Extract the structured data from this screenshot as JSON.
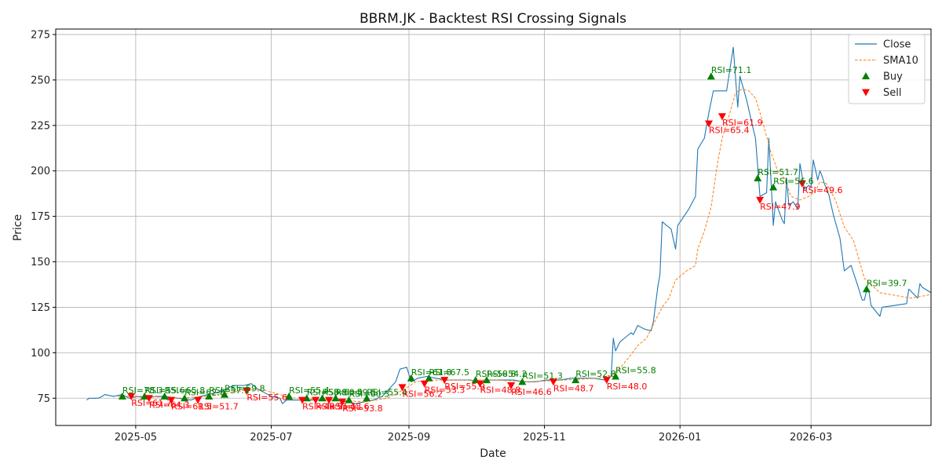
{
  "chart_data": {
    "type": "line",
    "title": "BBRM.JK - Backtest RSI Crossing Signals",
    "xlabel": "Date",
    "ylabel": "Price",
    "grid": true,
    "legend_position": "top-right",
    "x_range": [
      "2025-03-26",
      "2026-04-24"
    ],
    "ylim": [
      60,
      278
    ],
    "y_ticks": [
      75,
      100,
      125,
      150,
      175,
      200,
      225,
      250,
      275
    ],
    "x_ticks": [
      {
        "date": "2025-05-01",
        "label": "2025-05"
      },
      {
        "date": "2025-07-01",
        "label": "2025-07"
      },
      {
        "date": "2025-09-01",
        "label": "2025-09"
      },
      {
        "date": "2025-11-01",
        "label": "2025-11"
      },
      {
        "date": "2026-01-01",
        "label": "2026-01"
      },
      {
        "date": "2026-03-01",
        "label": "2026-03"
      }
    ],
    "colors": {
      "close": "#1f77b4",
      "sma": "#ff7f0e",
      "buy": "#008000",
      "sell": "#ff0000",
      "grid": "#b0b0b0"
    },
    "series": [
      {
        "key": "close",
        "name": "Close",
        "style": "solid",
        "points": [
          [
            "2025-04-09",
            74
          ],
          [
            "2025-04-10",
            75
          ],
          [
            "2025-04-14",
            75
          ],
          [
            "2025-04-16",
            76
          ],
          [
            "2025-04-17",
            77
          ],
          [
            "2025-04-21",
            76
          ],
          [
            "2025-04-25",
            77
          ],
          [
            "2025-04-28",
            75
          ],
          [
            "2025-05-02",
            76
          ],
          [
            "2025-05-06",
            75
          ],
          [
            "2025-05-10",
            76
          ],
          [
            "2025-05-14",
            76
          ],
          [
            "2025-05-20",
            75
          ],
          [
            "2025-05-26",
            74
          ],
          [
            "2025-05-30",
            76
          ],
          [
            "2025-06-03",
            77
          ],
          [
            "2025-06-09",
            79
          ],
          [
            "2025-06-12",
            81
          ],
          [
            "2025-06-15",
            82
          ],
          [
            "2025-06-19",
            82
          ],
          [
            "2025-06-22",
            83
          ],
          [
            "2025-06-25",
            80
          ],
          [
            "2025-06-28",
            78
          ],
          [
            "2025-07-01",
            76
          ],
          [
            "2025-07-05",
            75
          ],
          [
            "2025-07-06",
            72
          ],
          [
            "2025-07-08",
            74
          ],
          [
            "2025-07-13",
            74
          ],
          [
            "2025-07-20",
            74
          ],
          [
            "2025-07-25",
            74
          ],
          [
            "2025-07-30",
            74
          ],
          [
            "2025-08-04",
            73
          ],
          [
            "2025-08-08",
            72
          ],
          [
            "2025-08-12",
            73
          ],
          [
            "2025-08-16",
            74
          ],
          [
            "2025-08-20",
            76
          ],
          [
            "2025-08-23",
            80
          ],
          [
            "2025-08-26",
            84
          ],
          [
            "2025-08-28",
            91
          ],
          [
            "2025-08-31",
            92
          ],
          [
            "2025-09-02",
            84
          ],
          [
            "2025-09-05",
            86
          ],
          [
            "2025-09-09",
            87
          ],
          [
            "2025-09-13",
            86
          ],
          [
            "2025-09-18",
            85
          ],
          [
            "2025-09-23",
            85
          ],
          [
            "2025-09-28",
            85
          ],
          [
            "2025-10-03",
            84
          ],
          [
            "2025-10-08",
            85
          ],
          [
            "2025-10-13",
            85
          ],
          [
            "2025-10-18",
            85
          ],
          [
            "2025-10-23",
            84
          ],
          [
            "2025-10-28",
            84
          ],
          [
            "2025-11-02",
            85
          ],
          [
            "2025-11-08",
            85
          ],
          [
            "2025-11-13",
            86
          ],
          [
            "2025-11-18",
            86
          ],
          [
            "2025-11-23",
            86
          ],
          [
            "2025-11-28",
            85
          ],
          [
            "2025-12-01",
            87
          ],
          [
            "2025-12-02",
            108
          ],
          [
            "2025-12-03",
            101
          ],
          [
            "2025-12-05",
            106
          ],
          [
            "2025-12-08",
            109
          ],
          [
            "2025-12-10",
            111
          ],
          [
            "2025-12-11",
            110
          ],
          [
            "2025-12-13",
            115
          ],
          [
            "2025-12-16",
            113
          ],
          [
            "2025-12-19",
            112
          ],
          [
            "2025-12-20",
            117
          ],
          [
            "2025-12-22",
            136
          ],
          [
            "2025-12-23",
            143
          ],
          [
            "2025-12-24",
            172
          ],
          [
            "2025-12-28",
            168
          ],
          [
            "2025-12-30",
            157
          ],
          [
            "2025-12-31",
            170
          ],
          [
            "2026-01-05",
            179
          ],
          [
            "2026-01-08",
            186
          ],
          [
            "2026-01-09",
            212
          ],
          [
            "2026-01-12",
            218
          ],
          [
            "2026-01-14",
            232
          ],
          [
            "2026-01-16",
            244
          ],
          [
            "2026-01-20",
            244
          ],
          [
            "2026-01-22",
            244
          ],
          [
            "2026-01-25",
            268
          ],
          [
            "2026-01-27",
            235
          ],
          [
            "2026-01-28",
            252
          ],
          [
            "2026-01-31",
            239
          ],
          [
            "2026-02-02",
            228
          ],
          [
            "2026-02-04",
            218
          ],
          [
            "2026-02-06",
            186
          ],
          [
            "2026-02-09",
            188
          ],
          [
            "2026-02-10",
            218
          ],
          [
            "2026-02-12",
            170
          ],
          [
            "2026-02-13",
            183
          ],
          [
            "2026-02-16",
            173
          ],
          [
            "2026-02-17",
            171
          ],
          [
            "2026-02-18",
            196
          ],
          [
            "2026-02-19",
            181
          ],
          [
            "2026-02-21",
            183
          ],
          [
            "2026-02-23",
            179
          ],
          [
            "2026-02-24",
            204
          ],
          [
            "2026-02-26",
            190
          ],
          [
            "2026-02-28",
            192
          ],
          [
            "2026-03-01",
            191
          ],
          [
            "2026-03-02",
            206
          ],
          [
            "2026-03-04",
            195
          ],
          [
            "2026-03-05",
            200
          ],
          [
            "2026-03-06",
            197
          ],
          [
            "2026-03-07",
            193
          ],
          [
            "2026-03-09",
            187
          ],
          [
            "2026-03-11",
            176
          ],
          [
            "2026-03-14",
            163
          ],
          [
            "2026-03-16",
            145
          ],
          [
            "2026-03-19",
            148
          ],
          [
            "2026-03-22",
            137
          ],
          [
            "2026-03-24",
            129
          ],
          [
            "2026-03-25",
            129
          ],
          [
            "2026-03-26",
            134
          ],
          [
            "2026-03-27",
            134
          ],
          [
            "2026-03-28",
            126
          ],
          [
            "2026-04-01",
            120
          ],
          [
            "2026-04-02",
            125
          ],
          [
            "2026-04-13",
            127
          ],
          [
            "2026-04-14",
            135
          ],
          [
            "2026-04-18",
            130
          ],
          [
            "2026-04-19",
            138
          ],
          [
            "2026-04-20",
            136
          ],
          [
            "2026-04-24",
            133
          ]
        ]
      },
      {
        "key": "sma",
        "name": "SMA10",
        "style": "dashed",
        "points": [
          [
            "2025-04-23",
            76
          ],
          [
            "2025-05-07",
            76
          ],
          [
            "2025-05-20",
            75
          ],
          [
            "2025-06-03",
            76
          ],
          [
            "2025-06-17",
            79
          ],
          [
            "2025-06-26",
            80
          ],
          [
            "2025-07-05",
            77
          ],
          [
            "2025-07-12",
            75
          ],
          [
            "2025-07-30",
            74
          ],
          [
            "2025-08-12",
            73
          ],
          [
            "2025-08-22",
            75
          ],
          [
            "2025-08-30",
            80
          ],
          [
            "2025-09-04",
            84
          ],
          [
            "2025-09-12",
            85
          ],
          [
            "2025-09-25",
            85
          ],
          [
            "2025-10-10",
            85
          ],
          [
            "2025-10-25",
            84
          ],
          [
            "2025-11-10",
            85
          ],
          [
            "2025-11-25",
            86
          ],
          [
            "2025-12-02",
            88
          ],
          [
            "2025-12-06",
            93
          ],
          [
            "2025-12-10",
            99
          ],
          [
            "2025-12-13",
            104
          ],
          [
            "2025-12-17",
            108
          ],
          [
            "2025-12-21",
            118
          ],
          [
            "2025-12-24",
            125
          ],
          [
            "2025-12-27",
            130
          ],
          [
            "2025-12-30",
            140
          ],
          [
            "2026-01-04",
            145
          ],
          [
            "2026-01-08",
            148
          ],
          [
            "2026-01-09",
            157
          ],
          [
            "2026-01-12",
            167
          ],
          [
            "2026-01-15",
            180
          ],
          [
            "2026-01-18",
            205
          ],
          [
            "2026-01-20",
            218
          ],
          [
            "2026-01-23",
            230
          ],
          [
            "2026-01-26",
            243
          ],
          [
            "2026-01-29",
            245
          ],
          [
            "2026-02-01",
            244
          ],
          [
            "2026-02-04",
            240
          ],
          [
            "2026-02-07",
            228
          ],
          [
            "2026-02-11",
            210
          ],
          [
            "2026-02-14",
            200
          ],
          [
            "2026-02-17",
            196
          ],
          [
            "2026-02-20",
            186
          ],
          [
            "2026-02-24",
            184
          ],
          [
            "2026-02-28",
            186
          ],
          [
            "2026-03-03",
            189
          ],
          [
            "2026-03-05",
            194
          ],
          [
            "2026-03-08",
            193
          ],
          [
            "2026-03-12",
            184
          ],
          [
            "2026-03-16",
            169
          ],
          [
            "2026-03-20",
            162
          ],
          [
            "2026-03-25",
            141
          ],
          [
            "2026-04-01",
            133
          ],
          [
            "2026-04-15",
            130
          ],
          [
            "2026-04-24",
            132
          ]
        ]
      }
    ],
    "buy_signals": [
      {
        "date": "2025-04-25",
        "price": 76,
        "label": "RSI=78.3"
      },
      {
        "date": "2025-05-05",
        "price": 76,
        "label": "RSI=55.6"
      },
      {
        "date": "2025-05-14",
        "price": 76,
        "label": "RSI=65.8"
      },
      {
        "date": "2025-05-23",
        "price": 75,
        "label": "RSI=62.8"
      },
      {
        "date": "2025-06-03",
        "price": 76,
        "label": "RSI=57.1"
      },
      {
        "date": "2025-06-10",
        "price": 77,
        "label": "RSI=59.8"
      },
      {
        "date": "2025-07-09",
        "price": 76,
        "label": "RSI=55.4"
      },
      {
        "date": "2025-07-17",
        "price": 75,
        "label": "RSI=58.8"
      },
      {
        "date": "2025-07-24",
        "price": 75,
        "label": "RSI=60.4"
      },
      {
        "date": "2025-07-30",
        "price": 75,
        "label": "RSI=59.5"
      },
      {
        "date": "2025-08-05",
        "price": 74,
        "label": "RSI=60.3"
      },
      {
        "date": "2025-08-13",
        "price": 75,
        "label": "RSI=55.4"
      },
      {
        "date": "2025-09-02",
        "price": 86,
        "label": "RSI=61.8"
      },
      {
        "date": "2025-09-10",
        "price": 86,
        "label": "RSI=67.5"
      },
      {
        "date": "2025-10-01",
        "price": 85,
        "label": "RSI=58.8"
      },
      {
        "date": "2025-10-06",
        "price": 85,
        "label": "RSI=54.2"
      },
      {
        "date": "2025-10-22",
        "price": 84,
        "label": "RSI=51.3"
      },
      {
        "date": "2025-11-15",
        "price": 85,
        "label": "RSI=52.8"
      },
      {
        "date": "2025-12-03",
        "price": 87,
        "label": "RSI=55.8"
      },
      {
        "date": "2026-01-15",
        "price": 252,
        "label": "RSI=71.1"
      },
      {
        "date": "2026-02-05",
        "price": 196,
        "label": "RSI=51.7"
      },
      {
        "date": "2026-02-12",
        "price": 191,
        "label": "RSI=56.6"
      },
      {
        "date": "2026-03-26",
        "price": 135,
        "label": "RSI=39.7"
      }
    ],
    "sell_signals": [
      {
        "date": "2025-04-29",
        "price": 76,
        "label": "RSI=61.7"
      },
      {
        "date": "2025-05-07",
        "price": 75,
        "label": "RSI=64.3"
      },
      {
        "date": "2025-05-17",
        "price": 74,
        "label": "RSI=61.5"
      },
      {
        "date": "2025-05-29",
        "price": 74,
        "label": "RSI=51.7"
      },
      {
        "date": "2025-06-20",
        "price": 79,
        "label": "RSI=55.6"
      },
      {
        "date": "2025-07-15",
        "price": 74,
        "label": "RSI=48.9"
      },
      {
        "date": "2025-07-21",
        "price": 74,
        "label": "RSI=51.1"
      },
      {
        "date": "2025-07-27",
        "price": 74,
        "label": "RSI=48.6"
      },
      {
        "date": "2025-08-02",
        "price": 73,
        "label": "RSI=53.8"
      },
      {
        "date": "2025-08-29",
        "price": 81,
        "label": "RSI=56.2"
      },
      {
        "date": "2025-09-08",
        "price": 83,
        "label": "RSI=53.3"
      },
      {
        "date": "2025-09-17",
        "price": 85,
        "label": "RSI=55.9"
      },
      {
        "date": "2025-10-03",
        "price": 83,
        "label": "RSI=48.8"
      },
      {
        "date": "2025-10-17",
        "price": 82,
        "label": "RSI=46.6"
      },
      {
        "date": "2025-11-05",
        "price": 84,
        "label": "RSI=48.7"
      },
      {
        "date": "2025-11-29",
        "price": 85,
        "label": "RSI=48.0"
      },
      {
        "date": "2026-01-14",
        "price": 226,
        "label": "RSI=65.4"
      },
      {
        "date": "2026-01-20",
        "price": 230,
        "label": "RSI=61.9"
      },
      {
        "date": "2026-02-06",
        "price": 184,
        "label": "RSI=47.9"
      },
      {
        "date": "2026-02-25",
        "price": 193,
        "label": "RSI=49.6"
      }
    ],
    "legend": [
      {
        "key": "close",
        "label": "Close"
      },
      {
        "key": "sma",
        "label": "SMA10"
      },
      {
        "key": "buy",
        "label": "Buy"
      },
      {
        "key": "sell",
        "label": "Sell"
      }
    ]
  }
}
